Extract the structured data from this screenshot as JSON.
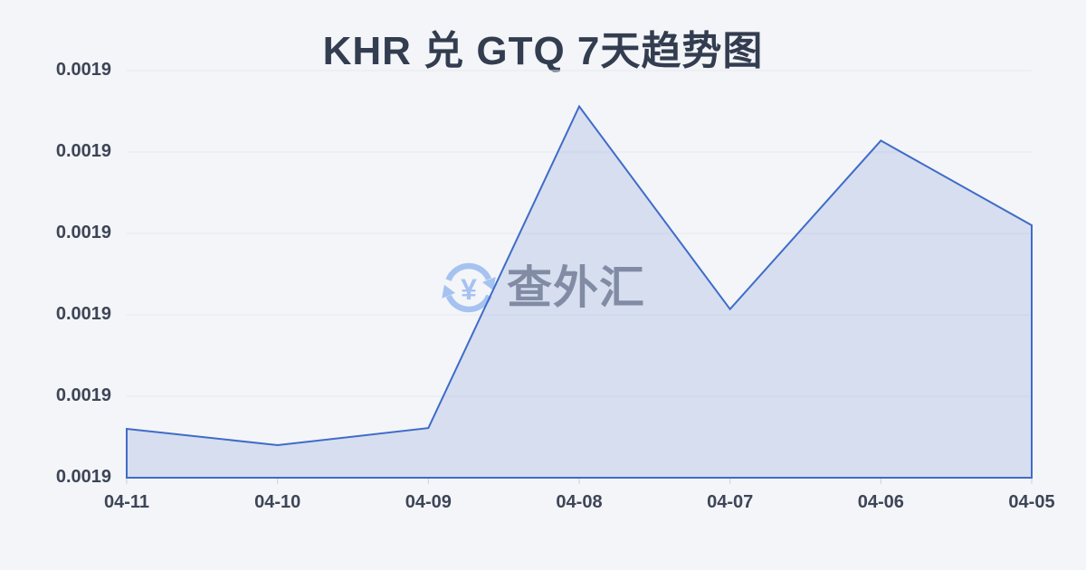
{
  "page": {
    "background_color": "#f4f5f8"
  },
  "title": {
    "text": "KHR 兑 GTQ 7天趋势图",
    "color": "#333d50"
  },
  "watermark": {
    "text": "查外汇",
    "icon": "currency-exchange-icon",
    "icon_color": "#a5c2f1",
    "text_color": "#8e939e"
  },
  "chart_data": {
    "type": "area",
    "title": "KHR 兑 GTQ 7天趋势图",
    "categories": [
      "04-11",
      "04-10",
      "04-09",
      "04-08",
      "04-07",
      "04-06",
      "04-05"
    ],
    "series": [
      {
        "name": "KHR/GTQ",
        "values": [
          0.001886,
          0.001884,
          0.0018861,
          0.0019256,
          0.0019007,
          0.0019214,
          0.001911
        ]
      }
    ],
    "xlabel": "",
    "ylabel": "",
    "ylim": [
      0.00188,
      0.00193
    ],
    "ytick_labels": [
      "0.0019",
      "0.0019",
      "0.0019",
      "0.0019",
      "0.0019",
      "0.0019"
    ],
    "grid": true,
    "legend_position": "none",
    "line_color": "#3f6cc8",
    "fill_color": "rgba(63,108,200,0.16)",
    "grid_color": "#e7e9ee",
    "tick_color": "#ccd0d8",
    "axis_label_color": "#3d4557"
  }
}
